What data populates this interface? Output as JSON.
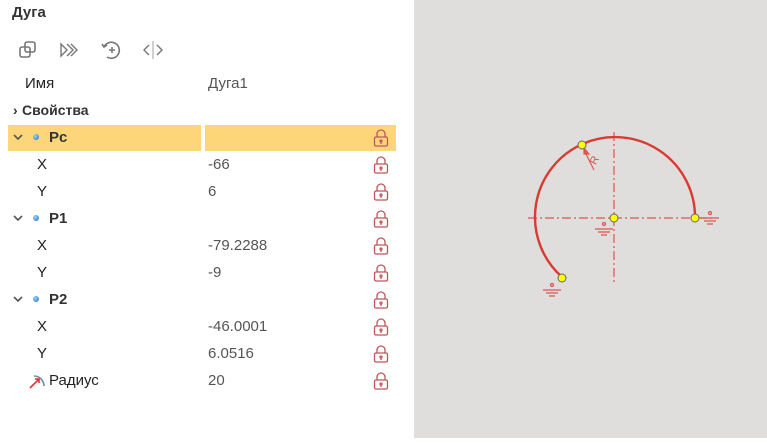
{
  "panel": {
    "title": "Дуга",
    "toolbar": [
      {
        "icon": "copy-icon"
      },
      {
        "icon": "forward-icon"
      },
      {
        "icon": "rotate-add-icon"
      },
      {
        "icon": "mirror-icon"
      }
    ],
    "name_label": "Имя",
    "name_value": "Дуга1",
    "properties_label": "Свойства",
    "groups": [
      {
        "label": "Pc",
        "x": "-66",
        "y": "6"
      },
      {
        "label": "P1",
        "x": "-79.2288",
        "y": "-9"
      },
      {
        "label": "P2",
        "x": "-46.0001",
        "y": "6.0516"
      }
    ],
    "x_label": "X",
    "y_label": "Y",
    "radius_label": "Радиус",
    "radius_value": "20"
  },
  "canvas": {
    "radius_label": "R",
    "accent": "#d93a32",
    "point_color": "#ffff00",
    "background": "#dfdedd",
    "highlight": "#fdd679"
  }
}
